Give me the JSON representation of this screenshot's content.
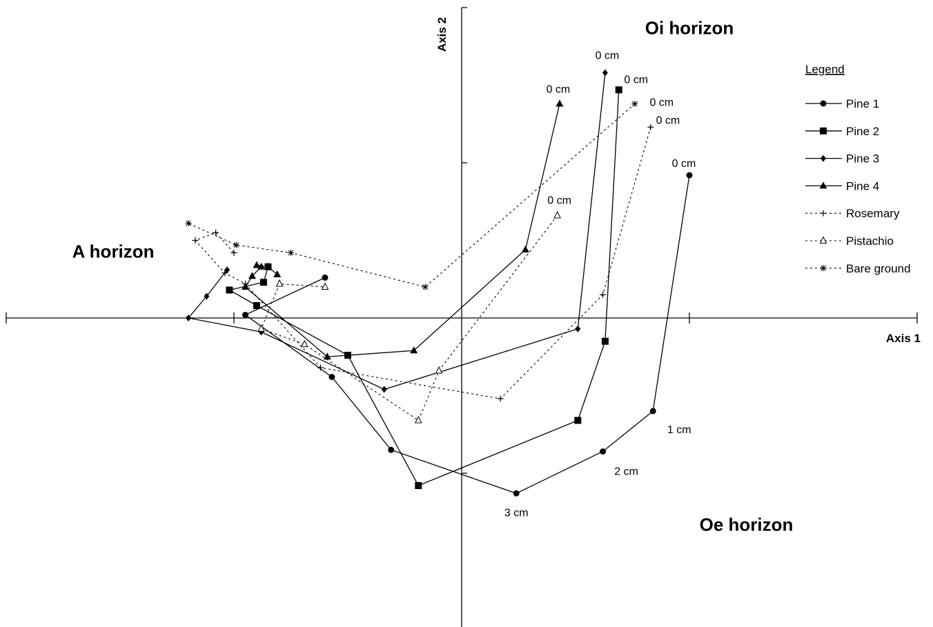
{
  "chart_data": {
    "type": "scatter",
    "title": "",
    "xlabel": "Axis 1",
    "ylabel": "Axis 2",
    "xlim": [
      -2,
      2
    ],
    "ylim": [
      -2,
      2
    ],
    "grid": false,
    "legend_position": "top-right",
    "legend_title": "Legend",
    "region_labels": [
      {
        "text": "Oi horizon",
        "x": 1.0,
        "y": 1.83
      },
      {
        "text": "A horizon",
        "x": -1.53,
        "y": 0.39
      },
      {
        "text": "Oe horizon",
        "x": 1.25,
        "y": -1.37
      }
    ],
    "series": [
      {
        "name": "Pine 1",
        "line": "solid",
        "marker": "circle",
        "x": [
          1.0,
          0.84,
          0.62,
          0.24,
          -0.31,
          -0.57,
          -0.95,
          -0.6
        ],
        "y": [
          0.92,
          -0.6,
          -0.86,
          -1.13,
          -0.85,
          -0.38,
          0.02,
          0.26
        ]
      },
      {
        "name": "Pine 2",
        "line": "solid",
        "marker": "square",
        "x": [
          0.69,
          0.63,
          0.51,
          -0.19,
          -0.5,
          -0.9,
          -1.02,
          -0.87,
          -0.85
        ],
        "y": [
          1.47,
          -0.15,
          -0.66,
          -1.08,
          -0.24,
          0.08,
          0.18,
          0.23,
          0.33
        ]
      },
      {
        "name": "Pine 3",
        "line": "solid",
        "marker": "diamond",
        "x": [
          0.63,
          0.51,
          -0.34,
          -0.88,
          -1.2,
          -1.12,
          -1.03
        ],
        "y": [
          1.58,
          -0.07,
          -0.46,
          -0.09,
          0.0,
          0.14,
          0.31
        ]
      },
      {
        "name": "Pine 4",
        "line": "solid",
        "marker": "triangle",
        "x": [
          0.43,
          0.28,
          -0.21,
          -0.59,
          -0.95,
          -0.92,
          -0.88,
          -0.9,
          -0.85,
          -0.81
        ],
        "y": [
          1.38,
          0.44,
          -0.21,
          -0.25,
          0.2,
          0.27,
          0.33,
          0.34,
          0.33,
          0.28
        ]
      },
      {
        "name": "Rosemary",
        "line": "dotted",
        "marker": "plus",
        "x": [
          0.83,
          0.62,
          0.17,
          -0.62,
          -0.95,
          -1.04,
          -1.17,
          -1.08,
          -1.0
        ],
        "y": [
          1.23,
          0.15,
          -0.52,
          -0.32,
          0.22,
          0.29,
          0.5,
          0.55,
          0.42
        ]
      },
      {
        "name": "Pistachio",
        "line": "dotted",
        "marker": "triangle-open",
        "x": [
          0.42,
          -0.1,
          -0.19,
          -0.69,
          -0.88,
          -0.8,
          -0.6
        ],
        "y": [
          0.66,
          -0.34,
          -0.66,
          -0.17,
          -0.07,
          0.22,
          0.2
        ]
      },
      {
        "name": "Bare ground",
        "line": "dotted",
        "marker": "asterisk",
        "x": [
          0.76,
          -0.16,
          -0.75,
          -0.99,
          -1.2
        ],
        "y": [
          1.38,
          0.2,
          0.42,
          0.47,
          0.61
        ]
      }
    ],
    "point_labels": [
      {
        "series": "Pine 1",
        "point": 0,
        "text": "0 cm"
      },
      {
        "series": "Pine 1",
        "point": 1,
        "text": "1 cm"
      },
      {
        "series": "Pine 1",
        "point": 2,
        "text": "2 cm"
      },
      {
        "series": "Pine 1",
        "point": 3,
        "text": "3 cm"
      },
      {
        "series": "Pine 2",
        "point": 0,
        "text": "0 cm"
      },
      {
        "series": "Pine 3",
        "point": 0,
        "text": "0 cm"
      },
      {
        "series": "Pine 4",
        "point": 0,
        "text": "0 cm"
      },
      {
        "series": "Rosemary",
        "point": 0,
        "text": "0 cm"
      },
      {
        "series": "Pistachio",
        "point": 0,
        "text": "0 cm"
      },
      {
        "series": "Bare ground",
        "point": 0,
        "text": "0 cm"
      }
    ]
  }
}
